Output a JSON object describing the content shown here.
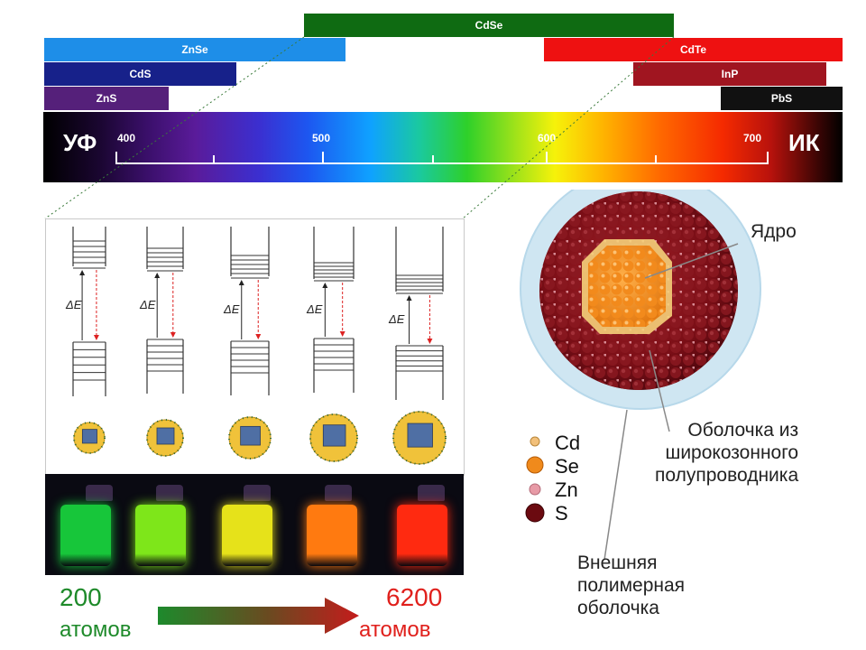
{
  "material_bars": [
    {
      "name": "CdSe",
      "color": "#0f6b12"
    },
    {
      "name": "ZnSe",
      "color": "#1e8ee8"
    },
    {
      "name": "CdTe",
      "color": "#ee1111"
    },
    {
      "name": "CdS",
      "color": "#17218a"
    },
    {
      "name": "InP",
      "color": "#a01520"
    },
    {
      "name": "ZnS",
      "color": "#55207a"
    },
    {
      "name": "PbS",
      "color": "#111111"
    }
  ],
  "spectrum": {
    "left_label": "УФ",
    "right_label": "ИК",
    "tick_labels": [
      "400",
      "500",
      "600",
      "700"
    ]
  },
  "delta_e_label": "ΔE",
  "vial_colors": [
    "#17c63a",
    "#7ee61a",
    "#e6e21a",
    "#ff7a10",
    "#ff2a10"
  ],
  "size_scale": {
    "min_value": "200",
    "max_value": "6200",
    "unit_left": "атомов",
    "unit_right": "атомов",
    "min_color": "#1e8a2a",
    "max_color": "#e0201c"
  },
  "nanoparticle": {
    "core_label": "Ядро",
    "shell_label_lines": [
      "Оболочка из",
      "широкозонного",
      "полупроводника"
    ],
    "polymer_label_lines": [
      "Внешняя",
      "полимерная",
      "оболочка"
    ],
    "legend": [
      {
        "symbol": "Cd",
        "color": "#f2c07a"
      },
      {
        "symbol": "Se",
        "color": "#f08a1c"
      },
      {
        "symbol": "Zn",
        "color": "#e79aa6"
      },
      {
        "symbol": "S",
        "color": "#6b0a10"
      }
    ]
  }
}
